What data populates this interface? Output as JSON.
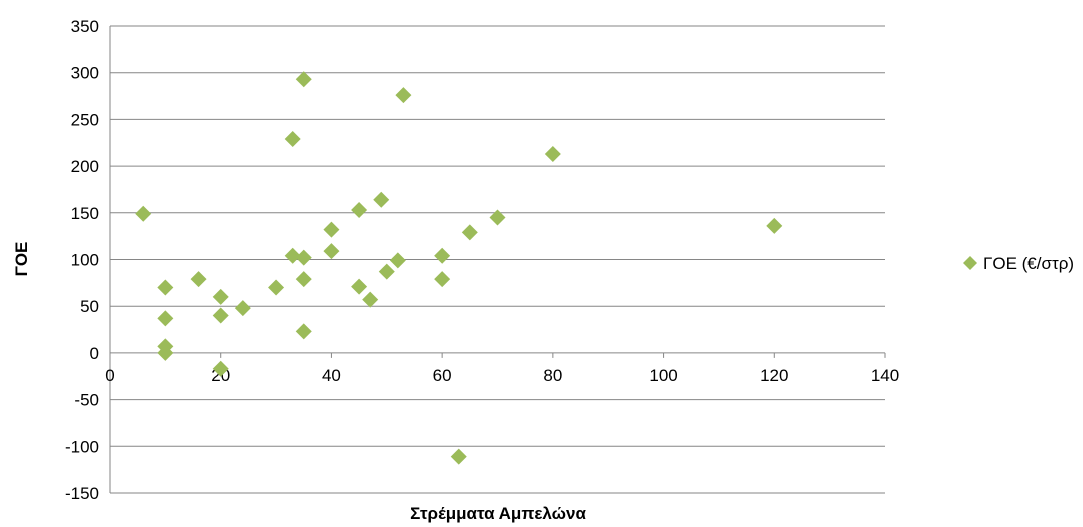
{
  "chart_data": {
    "type": "scatter",
    "title": "",
    "xlabel": "Στρέμματα Αμπελώνα",
    "ylabel": "ΓΟΕ",
    "xlim": [
      0,
      140
    ],
    "ylim": [
      -150,
      350
    ],
    "xticks": [
      0,
      20,
      40,
      60,
      80,
      100,
      120,
      140
    ],
    "yticks": [
      -150,
      -100,
      -50,
      0,
      50,
      100,
      150,
      200,
      250,
      300,
      350
    ],
    "grid": "horizontal",
    "legend_position": "right",
    "series": [
      {
        "name": "ΓΟΕ (€/στρ)",
        "color": "#9bbb59",
        "marker": "diamond",
        "points": [
          [
            6,
            149
          ],
          [
            10,
            70
          ],
          [
            10,
            37
          ],
          [
            10,
            7
          ],
          [
            10,
            0
          ],
          [
            16,
            79
          ],
          [
            20,
            60
          ],
          [
            20,
            40
          ],
          [
            20,
            -17
          ],
          [
            24,
            48
          ],
          [
            30,
            70
          ],
          [
            33,
            229
          ],
          [
            33,
            104
          ],
          [
            35,
            293
          ],
          [
            35,
            102
          ],
          [
            35,
            79
          ],
          [
            35,
            23
          ],
          [
            40,
            132
          ],
          [
            40,
            109
          ],
          [
            45,
            153
          ],
          [
            45,
            71
          ],
          [
            47,
            57
          ],
          [
            49,
            164
          ],
          [
            50,
            87
          ],
          [
            52,
            99
          ],
          [
            53,
            276
          ],
          [
            60,
            104
          ],
          [
            60,
            79
          ],
          [
            63,
            -111
          ],
          [
            65,
            129
          ],
          [
            70,
            145
          ],
          [
            80,
            213
          ],
          [
            120,
            136
          ]
        ]
      }
    ]
  }
}
